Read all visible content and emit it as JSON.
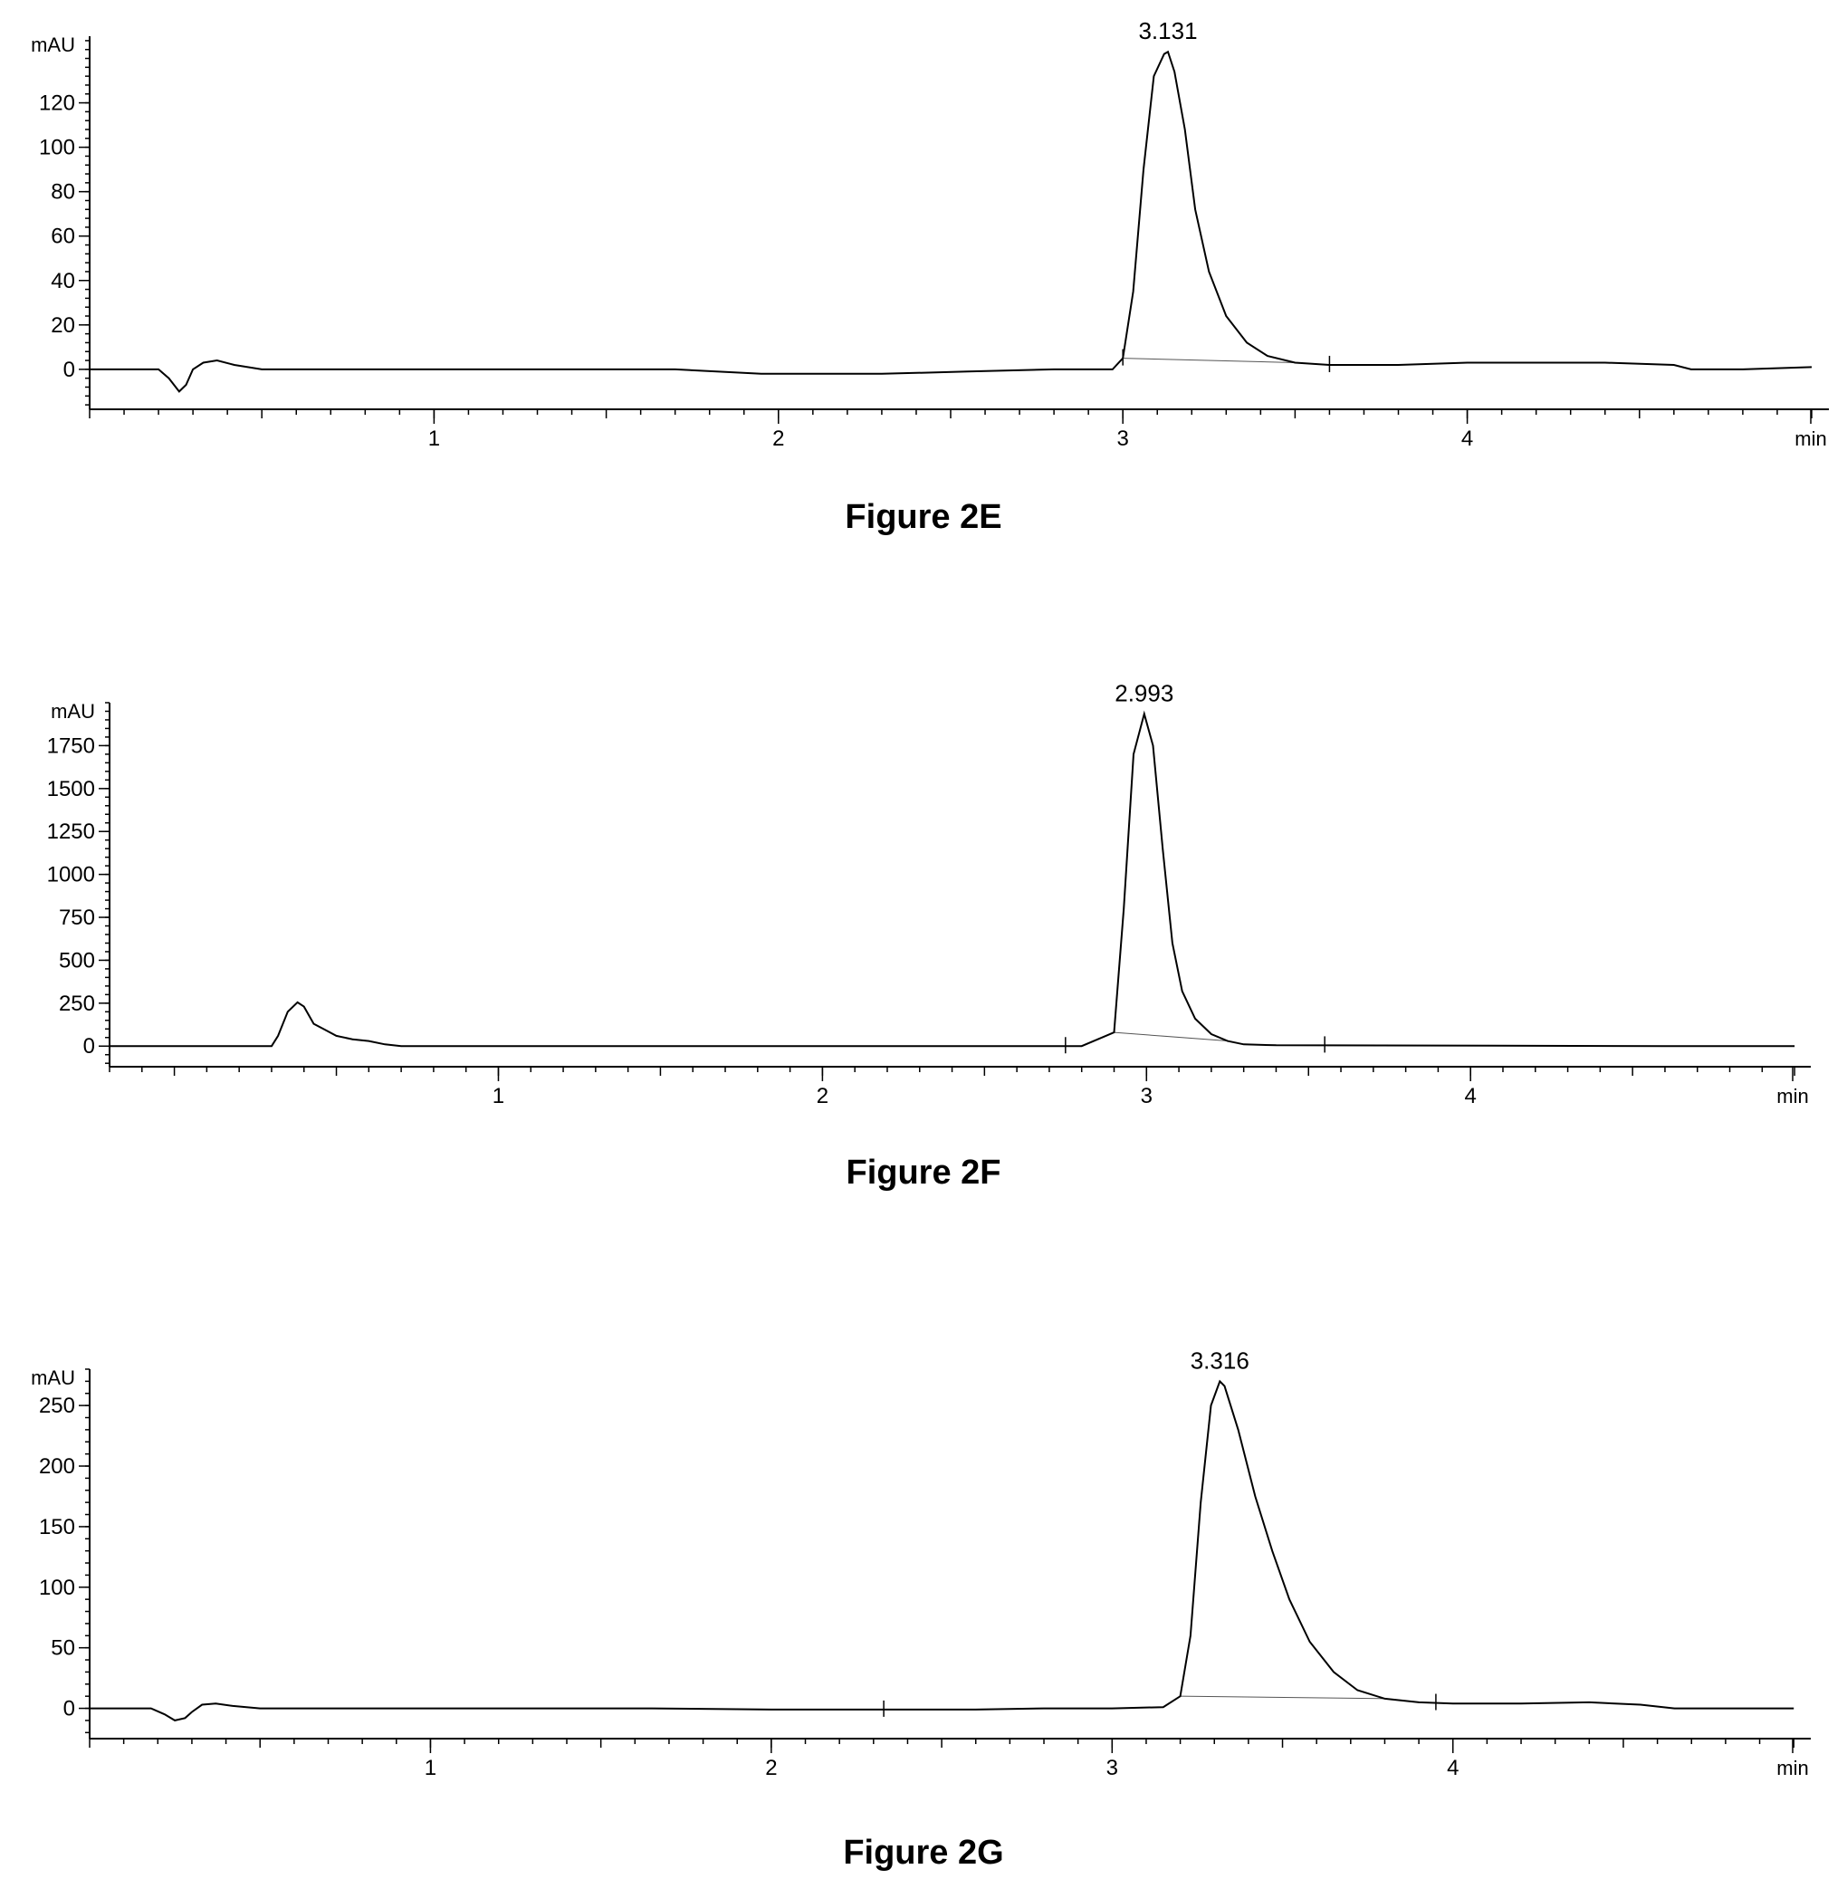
{
  "chart_data": [
    {
      "type": "line",
      "caption": "Figure 2E",
      "ylabel": "mAU",
      "xlabel": "min",
      "xlim": [
        0,
        5.05
      ],
      "ylim": [
        -18,
        150
      ],
      "xticks": [
        1,
        2,
        3,
        4
      ],
      "yticks": [
        0,
        20,
        40,
        60,
        80,
        100,
        120
      ],
      "peak": {
        "label": "3.131",
        "x": 3.131,
        "y": 143
      },
      "integration_marks": [
        3.0,
        3.6
      ],
      "series": [
        {
          "x": [
            0,
            0.2,
            0.23,
            0.26,
            0.28,
            0.3,
            0.33,
            0.37,
            0.42,
            0.5,
            0.55,
            1.0,
            1.7,
            1.95,
            2.3,
            2.55,
            2.8,
            2.97,
            3.0,
            3.03,
            3.06,
            3.09,
            3.12,
            3.131,
            3.15,
            3.18,
            3.21,
            3.25,
            3.3,
            3.36,
            3.42,
            3.5,
            3.6,
            3.8,
            4.0,
            4.2,
            4.4,
            4.6,
            4.65,
            4.8,
            5.0
          ],
          "y": [
            0,
            0,
            -4,
            -10,
            -7,
            0,
            3,
            4,
            2,
            0,
            0,
            0,
            0,
            -2,
            -2,
            -1,
            0,
            0,
            5,
            35,
            90,
            132,
            142,
            143,
            134,
            108,
            72,
            44,
            24,
            12,
            6,
            3,
            2,
            2,
            3,
            3,
            3,
            2,
            0,
            0,
            1
          ]
        }
      ]
    },
    {
      "type": "line",
      "caption": "Figure 2F",
      "ylabel": "mAU",
      "xlabel": "min",
      "xlim": [
        -0.2,
        5.05
      ],
      "ylim": [
        -120,
        2000
      ],
      "xticks": [
        1,
        2,
        3,
        4
      ],
      "yticks": [
        0,
        250,
        500,
        750,
        1000,
        1250,
        1500,
        1750
      ],
      "peak": {
        "label": "2.993",
        "x": 2.993,
        "y": 1935
      },
      "integration_marks": [
        2.75,
        3.55
      ],
      "series": [
        {
          "x": [
            -0.2,
            0.3,
            0.32,
            0.35,
            0.38,
            0.4,
            0.43,
            0.46,
            0.5,
            0.55,
            0.6,
            0.65,
            0.7,
            1.0,
            2.5,
            2.8,
            2.9,
            2.93,
            2.96,
            2.993,
            3.02,
            3.05,
            3.08,
            3.11,
            3.15,
            3.2,
            3.25,
            3.3,
            3.4,
            4.6,
            5.0
          ],
          "y": [
            0,
            0,
            60,
            200,
            255,
            230,
            130,
            100,
            60,
            40,
            30,
            10,
            0,
            0,
            0,
            0,
            80,
            800,
            1700,
            1935,
            1750,
            1150,
            600,
            320,
            160,
            70,
            30,
            10,
            5,
            0,
            0
          ]
        }
      ]
    },
    {
      "type": "line",
      "caption": "Figure 2G",
      "ylabel": "mAU",
      "xlabel": "min",
      "xlim": [
        0,
        5.05
      ],
      "ylim": [
        -25,
        280
      ],
      "xticks": [
        1,
        2,
        3,
        4
      ],
      "yticks": [
        0,
        50,
        100,
        150,
        200,
        250
      ],
      "peak": {
        "label": "3.316",
        "x": 3.316,
        "y": 270
      },
      "integration_marks": [
        2.33,
        3.95
      ],
      "series": [
        {
          "x": [
            0,
            0.18,
            0.22,
            0.25,
            0.28,
            0.3,
            0.33,
            0.37,
            0.42,
            0.5,
            1.65,
            2.0,
            2.4,
            2.6,
            2.8,
            3.0,
            3.15,
            3.2,
            3.23,
            3.26,
            3.29,
            3.316,
            3.33,
            3.37,
            3.42,
            3.47,
            3.52,
            3.58,
            3.65,
            3.72,
            3.8,
            3.9,
            4.0,
            4.2,
            4.4,
            4.55,
            4.65,
            5.0
          ],
          "y": [
            0,
            0,
            -5,
            -10,
            -8,
            -3,
            3,
            4,
            2,
            0,
            0,
            -1,
            -1,
            -1,
            0,
            0,
            1,
            10,
            60,
            170,
            250,
            270,
            266,
            230,
            175,
            130,
            90,
            55,
            30,
            15,
            8,
            5,
            4,
            4,
            5,
            3,
            0,
            0
          ]
        }
      ]
    }
  ]
}
